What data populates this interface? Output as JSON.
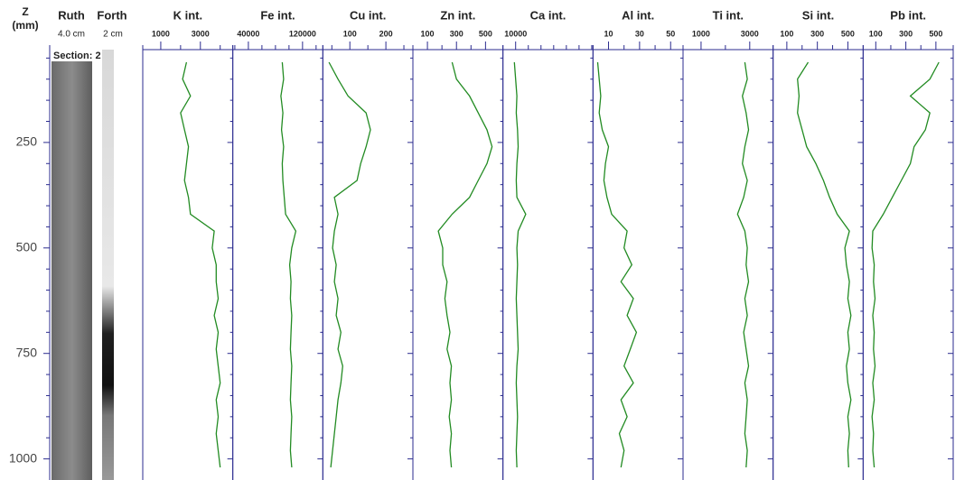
{
  "depth_axis": {
    "label": "Z",
    "unit": "(mm)",
    "lim": [
      30,
      1050
    ],
    "inverted": true,
    "ticks": [
      250,
      500,
      750,
      1000
    ],
    "minor_ticks": [
      50,
      100,
      150,
      200,
      300,
      350,
      400,
      450,
      550,
      600,
      650,
      700,
      800,
      850,
      900,
      950
    ]
  },
  "core_images": [
    {
      "name": "Ruth",
      "width_label": "4.0 cm"
    },
    {
      "name": "Forth",
      "width_label": "2 cm"
    }
  ],
  "section_label": "Section: 2",
  "chart_data": [
    {
      "type": "line",
      "title": "K int.",
      "color": "#228b22",
      "xlim": [
        91,
        4636
      ],
      "xticks": [
        1000,
        3000
      ],
      "xminor_ticks": [
        2000,
        4000
      ],
      "y": [
        60,
        100,
        140,
        180,
        220,
        260,
        300,
        340,
        380,
        420,
        460,
        500,
        540,
        580,
        620,
        660,
        700,
        740,
        780,
        820,
        860,
        900,
        940,
        980,
        1020
      ],
      "values": [
        2300,
        2100,
        2500,
        2000,
        2200,
        2400,
        2300,
        2200,
        2400,
        2500,
        3700,
        3600,
        3800,
        3800,
        3900,
        3700,
        3900,
        3800,
        3900,
        4000,
        3800,
        3900,
        3800,
        3900,
        4000
      ]
    },
    {
      "type": "line",
      "title": "Fe int.",
      "color": "#228b22",
      "xlim": [
        17000,
        150000
      ],
      "xticks": [
        40000,
        120000
      ],
      "xminor_ticks": [
        20000,
        60000,
        80000,
        100000,
        140000
      ],
      "y": [
        60,
        100,
        140,
        180,
        220,
        260,
        300,
        340,
        380,
        420,
        460,
        500,
        540,
        580,
        620,
        660,
        700,
        740,
        780,
        820,
        860,
        900,
        940,
        980,
        1020
      ],
      "values": [
        90000,
        92000,
        88000,
        91000,
        89000,
        92000,
        90000,
        91000,
        93000,
        95000,
        110000,
        104000,
        101000,
        103000,
        102000,
        104000,
        103000,
        102000,
        104000,
        103000,
        102000,
        104000,
        103000,
        102000,
        104000
      ]
    },
    {
      "type": "line",
      "title": "Cu int.",
      "color": "#228b22",
      "xlim": [
        25,
        275
      ],
      "xticks": [
        100,
        200
      ],
      "xminor_ticks": [
        50,
        150,
        250
      ],
      "y": [
        60,
        100,
        140,
        180,
        220,
        260,
        300,
        340,
        380,
        420,
        460,
        500,
        540,
        580,
        620,
        660,
        700,
        740,
        780,
        820,
        860,
        900,
        940,
        980,
        1020
      ],
      "values": [
        42,
        67,
        95,
        145,
        157,
        145,
        130,
        120,
        57,
        67,
        57,
        52,
        62,
        57,
        67,
        62,
        75,
        67,
        80,
        75,
        67,
        62,
        57,
        52,
        47
      ]
    },
    {
      "type": "line",
      "title": "Zn int.",
      "color": "#228b22",
      "xlim": [
        0,
        620
      ],
      "xticks": [
        100,
        300,
        500
      ],
      "xminor_ticks": [
        200,
        400
      ],
      "y": [
        60,
        100,
        140,
        180,
        220,
        260,
        300,
        340,
        380,
        420,
        460,
        500,
        540,
        580,
        620,
        660,
        700,
        740,
        780,
        820,
        860,
        900,
        940,
        980,
        1020
      ],
      "values": [
        270,
        300,
        390,
        450,
        510,
        545,
        510,
        450,
        390,
        270,
        175,
        205,
        205,
        235,
        220,
        235,
        255,
        235,
        265,
        255,
        265,
        250,
        265,
        255,
        265
      ]
    },
    {
      "type": "line",
      "title": "Ca int.",
      "color": "#228b22",
      "xlim": [
        0,
        71000
      ],
      "xticks": [
        10000
      ],
      "xminor_ticks": [
        20000,
        30000,
        40000,
        50000,
        60000,
        70000
      ],
      "y": [
        60,
        100,
        140,
        180,
        220,
        260,
        300,
        340,
        380,
        420,
        460,
        500,
        540,
        580,
        620,
        660,
        700,
        740,
        780,
        820,
        860,
        900,
        940,
        980,
        1020
      ],
      "values": [
        9000,
        10000,
        11000,
        10500,
        11500,
        12000,
        11000,
        10500,
        11000,
        18000,
        12000,
        11000,
        11500,
        11000,
        10500,
        11000,
        11500,
        12000,
        11000,
        10500,
        11000,
        11500,
        11000,
        10500,
        11000
      ]
    },
    {
      "type": "line",
      "title": "Al int.",
      "color": "#228b22",
      "xlim": [
        0,
        58
      ],
      "xticks": [
        10,
        30,
        50
      ],
      "xminor_ticks": [
        20,
        40
      ],
      "y": [
        60,
        100,
        140,
        180,
        220,
        260,
        300,
        340,
        380,
        420,
        460,
        500,
        540,
        580,
        620,
        660,
        700,
        740,
        780,
        820,
        860,
        900,
        940,
        980,
        1020
      ],
      "values": [
        3,
        4,
        5,
        4,
        6,
        10,
        8,
        7,
        9,
        12,
        22,
        20,
        25,
        18,
        26,
        22,
        28,
        24,
        20,
        26,
        18,
        22,
        17,
        20,
        18
      ]
    },
    {
      "type": "line",
      "title": "Ti int.",
      "color": "#228b22",
      "xlim": [
        260,
        3960
      ],
      "xticks": [
        1000,
        3000
      ],
      "xminor_ticks": [
        2000
      ],
      "y": [
        60,
        100,
        140,
        180,
        220,
        260,
        300,
        340,
        380,
        420,
        460,
        500,
        540,
        580,
        620,
        660,
        700,
        740,
        780,
        820,
        860,
        900,
        940,
        980,
        1020
      ],
      "values": [
        2800,
        2900,
        2700,
        2850,
        2950,
        2800,
        2700,
        2900,
        2750,
        2500,
        2800,
        2900,
        2850,
        2950,
        2800,
        2900,
        2750,
        2850,
        2950,
        2800,
        2900,
        2850,
        2800,
        2900,
        2850
      ]
    },
    {
      "type": "line",
      "title": "Si int.",
      "color": "#228b22",
      "xlim": [
        10,
        600
      ],
      "xticks": [
        100,
        300,
        500
      ],
      "xminor_ticks": [
        200,
        400
      ],
      "y": [
        60,
        100,
        140,
        180,
        220,
        260,
        300,
        340,
        380,
        420,
        460,
        500,
        540,
        580,
        620,
        660,
        700,
        740,
        780,
        820,
        860,
        900,
        940,
        980,
        1020
      ],
      "values": [
        240,
        170,
        180,
        170,
        200,
        230,
        290,
        340,
        380,
        430,
        510,
        480,
        490,
        510,
        500,
        520,
        500,
        510,
        490,
        500,
        520,
        500,
        510,
        500,
        505
      ]
    },
    {
      "type": "line",
      "title": "Pb int.",
      "color": "#228b22",
      "xlim": [
        16,
        615
      ],
      "xticks": [
        100,
        300,
        500
      ],
      "xminor_ticks": [
        200,
        400
      ],
      "y": [
        60,
        100,
        140,
        180,
        220,
        260,
        300,
        340,
        380,
        420,
        460,
        500,
        540,
        580,
        620,
        660,
        700,
        740,
        780,
        820,
        860,
        900,
        940,
        980,
        1020
      ],
      "values": [
        520,
        460,
        330,
        460,
        430,
        355,
        330,
        270,
        210,
        150,
        80,
        75,
        90,
        85,
        95,
        80,
        90,
        85,
        95,
        80,
        90,
        75,
        85,
        80,
        90
      ]
    }
  ]
}
